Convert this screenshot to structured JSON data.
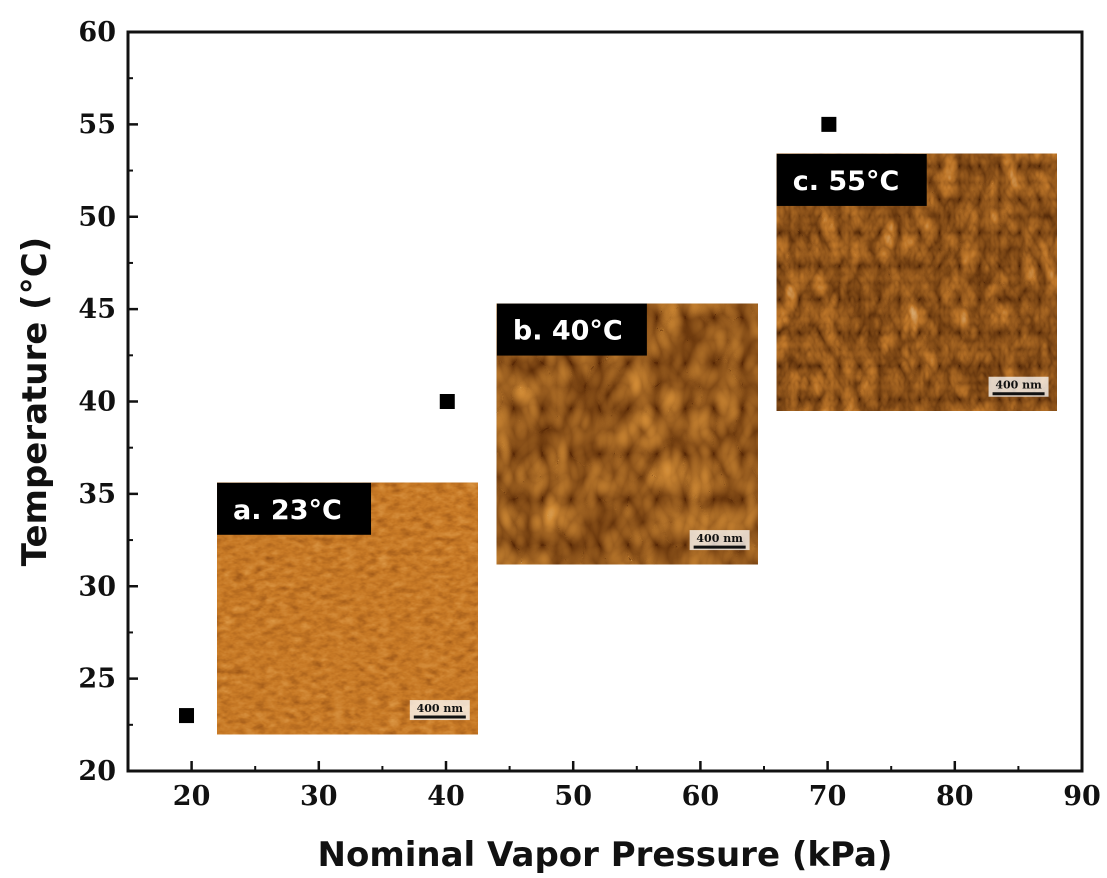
{
  "chart_data": {
    "type": "scatter",
    "xlabel": "Nominal Vapor Pressure (kPa)",
    "ylabel": "Temperature (°C)",
    "xlim": [
      15,
      90
    ],
    "ylim": [
      20,
      60
    ],
    "x_ticks": [
      20,
      30,
      40,
      50,
      60,
      70,
      80,
      90
    ],
    "y_ticks": [
      20,
      25,
      30,
      35,
      40,
      45,
      50,
      55,
      60
    ],
    "x_tick_labels": [
      "20",
      "30",
      "40",
      "50",
      "60",
      "70",
      "80",
      "90"
    ],
    "y_tick_labels": [
      "20",
      "25",
      "30",
      "35",
      "40",
      "45",
      "50",
      "55",
      "60"
    ],
    "grid": false,
    "marker": "square",
    "marker_color": "#000000",
    "x": [
      19.6,
      40.1,
      70.1
    ],
    "y": [
      23.0,
      40.0,
      55.0
    ],
    "insets": [
      {
        "id": "a",
        "label": "a. 23°C",
        "scale_bar": "400 nm",
        "palette": [
          "#7a3a0a",
          "#c87a26",
          "#f0b565"
        ],
        "extent_x": [
          22,
          42.5
        ],
        "extent_y": [
          22,
          35.6
        ]
      },
      {
        "id": "b",
        "label": "b. 40°C",
        "scale_bar": "400 nm",
        "palette": [
          "#5a2a06",
          "#d08a35",
          "#fff0c8"
        ],
        "extent_x": [
          44,
          64.5
        ],
        "extent_y": [
          31.2,
          45.3
        ]
      },
      {
        "id": "c",
        "label": "c. 55°C",
        "scale_bar": "400 nm",
        "palette": [
          "#4a2205",
          "#c0782a",
          "#fff4d8"
        ],
        "extent_x": [
          66,
          88
        ],
        "extent_y": [
          39.5,
          53.4
        ]
      }
    ]
  }
}
